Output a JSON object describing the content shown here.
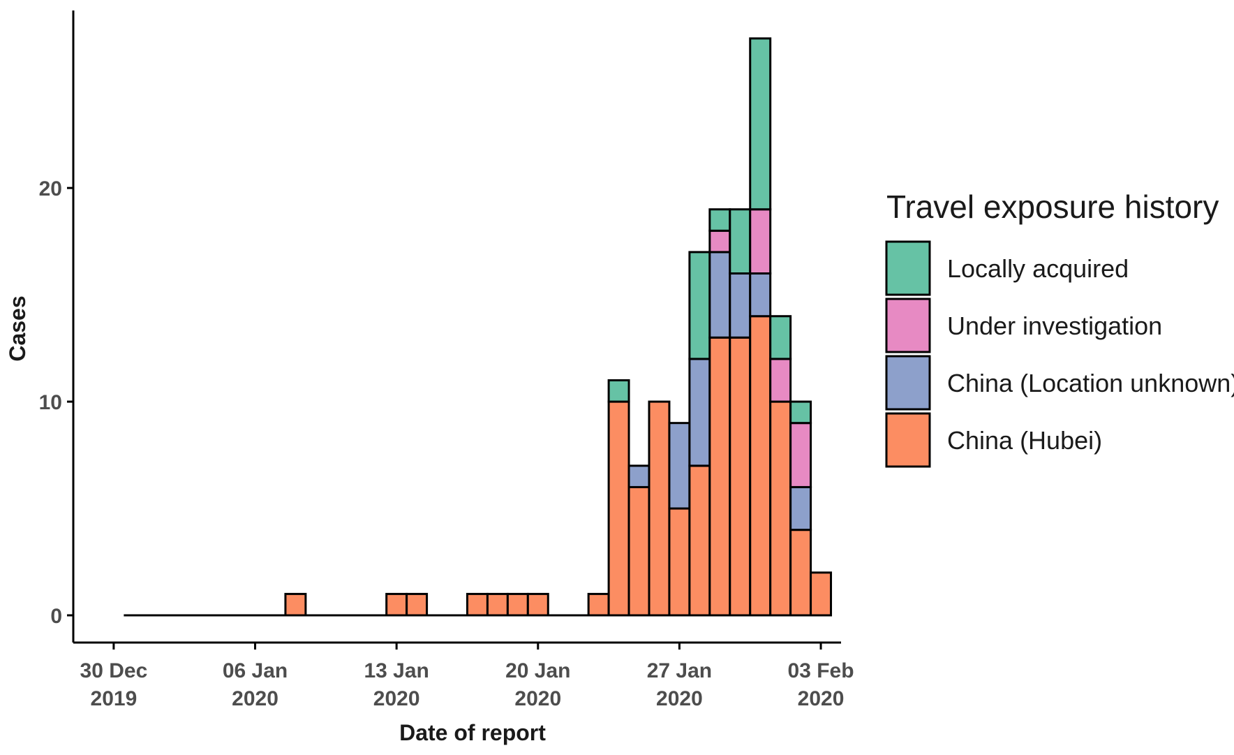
{
  "chart_data": {
    "type": "bar",
    "stacked": true,
    "xlabel": "Date of report",
    "ylabel": "Cases",
    "ylim": [
      0,
      27
    ],
    "y_ticks": [
      0,
      10,
      20
    ],
    "x_ticks": [
      {
        "date": "2019-12-30",
        "line1": "30 Dec",
        "line2": "2019"
      },
      {
        "date": "2020-01-06",
        "line1": "06 Jan",
        "line2": "2020"
      },
      {
        "date": "2020-01-13",
        "line1": "13 Jan",
        "line2": "2020"
      },
      {
        "date": "2020-01-20",
        "line1": "20 Jan",
        "line2": "2020"
      },
      {
        "date": "2020-01-27",
        "line1": "27 Jan",
        "line2": "2020"
      },
      {
        "date": "2020-02-03",
        "line1": "03 Feb",
        "line2": "2020"
      }
    ],
    "x_range": [
      "2019-12-28",
      "2020-02-04"
    ],
    "baseline_range": [
      "2019-12-31",
      "2020-02-03"
    ],
    "legend": {
      "title": "Travel exposure history",
      "position": "right"
    },
    "grid": false,
    "dates": [
      "2020-01-08",
      "2020-01-13",
      "2020-01-14",
      "2020-01-17",
      "2020-01-18",
      "2020-01-19",
      "2020-01-20",
      "2020-01-23",
      "2020-01-24",
      "2020-01-25",
      "2020-01-26",
      "2020-01-27",
      "2020-01-28",
      "2020-01-29",
      "2020-01-30",
      "2020-01-31",
      "2020-02-01",
      "2020-02-02",
      "2020-02-03"
    ],
    "series": [
      {
        "name": "China (Hubei)",
        "color": "#fc8d62",
        "values": [
          1,
          1,
          1,
          1,
          1,
          1,
          1,
          1,
          10,
          6,
          10,
          5,
          7,
          13,
          13,
          14,
          10,
          4,
          2
        ]
      },
      {
        "name": "China (Location unknown)",
        "color": "#8da0cb",
        "values": [
          0,
          0,
          0,
          0,
          0,
          0,
          0,
          0,
          0,
          1,
          0,
          4,
          5,
          4,
          3,
          2,
          0,
          2,
          0
        ]
      },
      {
        "name": "Under investigation",
        "color": "#e78ac3",
        "values": [
          0,
          0,
          0,
          0,
          0,
          0,
          0,
          0,
          0,
          0,
          0,
          0,
          0,
          1,
          0,
          3,
          2,
          3,
          0
        ]
      },
      {
        "name": "Locally acquired",
        "color": "#66c2a5",
        "values": [
          0,
          0,
          0,
          0,
          0,
          0,
          0,
          0,
          1,
          0,
          0,
          0,
          5,
          1,
          3,
          8,
          2,
          1,
          0
        ]
      }
    ],
    "legend_order": [
      "Locally acquired",
      "Under investigation",
      "China (Location unknown)",
      "China (Hubei)"
    ]
  }
}
